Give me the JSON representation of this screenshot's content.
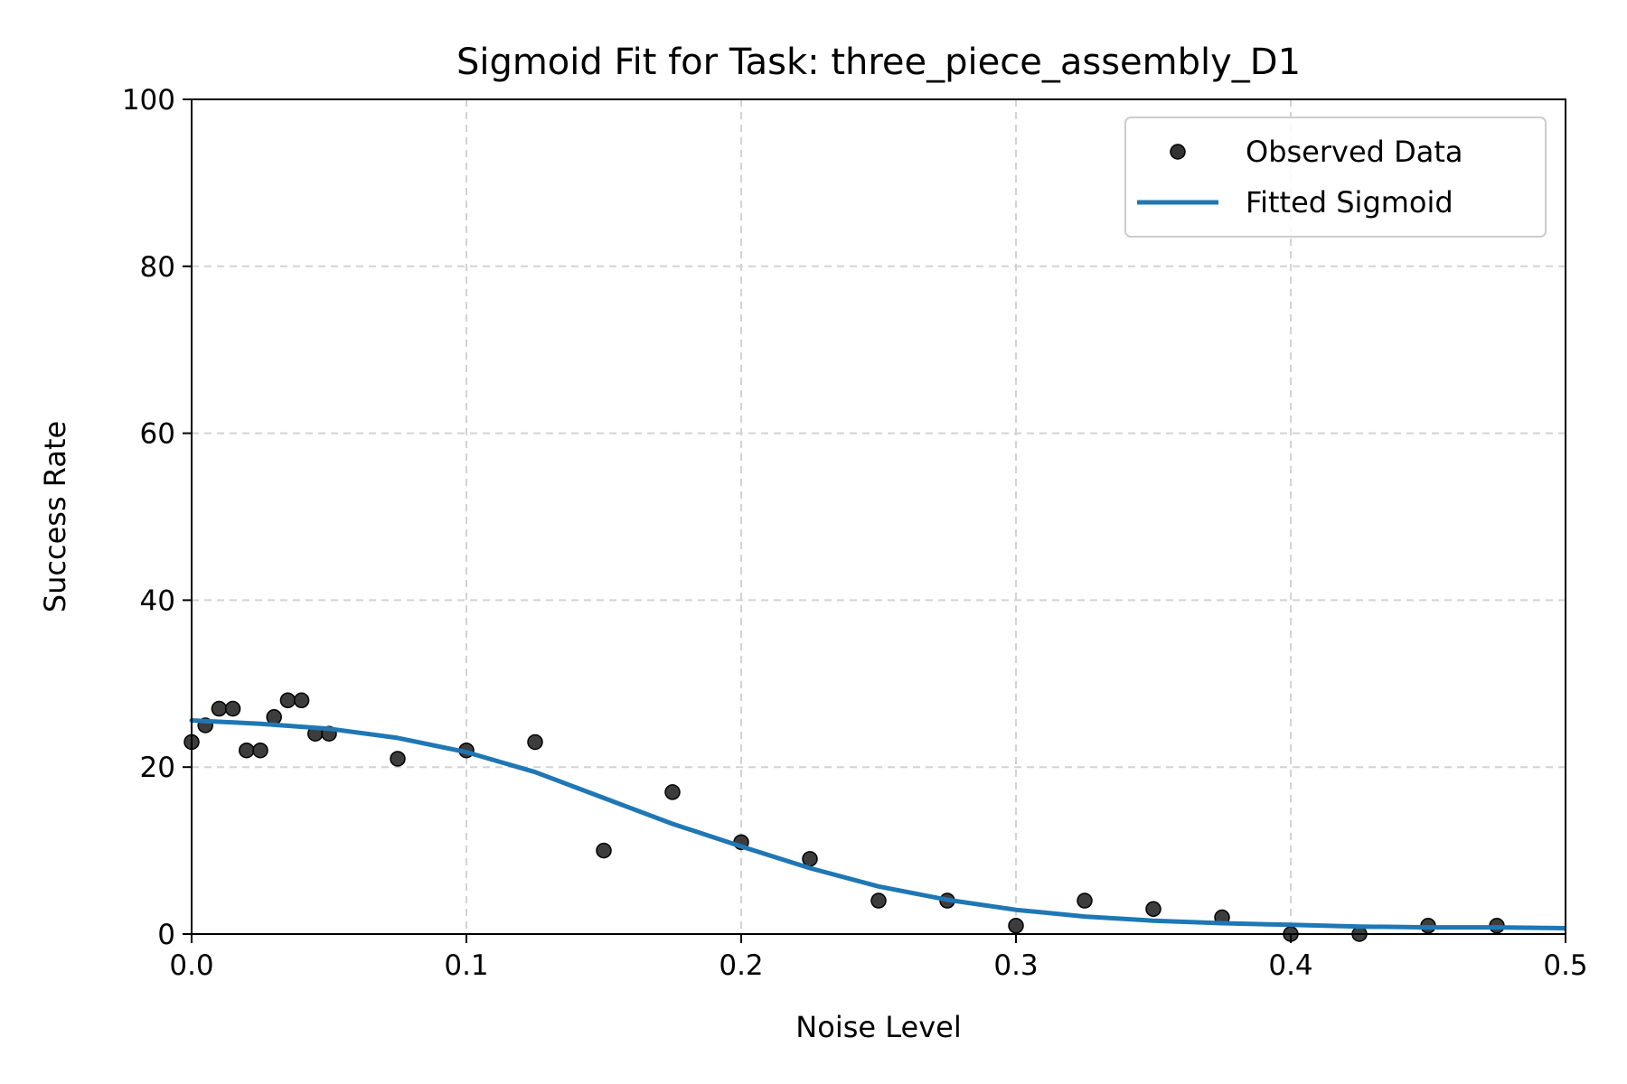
{
  "chart_data": {
    "type": "scatter",
    "title": "Sigmoid Fit for Task: three_piece_assembly_D1",
    "xlabel": "Noise Level",
    "ylabel": "Success Rate",
    "xlim": [
      0.0,
      0.5
    ],
    "ylim": [
      0,
      100
    ],
    "x_ticks": [
      "0.0",
      "0.1",
      "0.2",
      "0.3",
      "0.4",
      "0.5"
    ],
    "y_ticks": [
      "0",
      "20",
      "40",
      "60",
      "80",
      "100"
    ],
    "grid": true,
    "legend_position": "top-right",
    "series": [
      {
        "name": "Observed Data",
        "kind": "scatter",
        "color": "#333333",
        "x": [
          0.0,
          0.005,
          0.01,
          0.015,
          0.02,
          0.025,
          0.03,
          0.035,
          0.04,
          0.045,
          0.05,
          0.075,
          0.1,
          0.125,
          0.15,
          0.175,
          0.2,
          0.225,
          0.25,
          0.275,
          0.3,
          0.325,
          0.35,
          0.375,
          0.4,
          0.425,
          0.45,
          0.475
        ],
        "y": [
          23,
          25,
          27,
          27,
          22,
          22,
          26,
          28,
          28,
          24,
          24,
          21,
          22,
          23,
          10,
          17,
          11,
          9,
          4,
          4,
          1,
          4,
          3,
          2,
          0,
          0,
          1,
          1
        ]
      },
      {
        "name": "Fitted Sigmoid",
        "kind": "line",
        "color": "#1f77b4",
        "x": [
          0.0,
          0.025,
          0.05,
          0.075,
          0.1,
          0.125,
          0.15,
          0.175,
          0.2,
          0.225,
          0.25,
          0.275,
          0.3,
          0.325,
          0.35,
          0.375,
          0.4,
          0.425,
          0.45,
          0.475,
          0.5
        ],
        "y": [
          25.6,
          25.2,
          24.6,
          23.5,
          21.8,
          19.4,
          16.3,
          13.2,
          10.5,
          7.9,
          5.7,
          4.1,
          2.9,
          2.1,
          1.6,
          1.3,
          1.1,
          0.9,
          0.8,
          0.8,
          0.7
        ]
      }
    ]
  }
}
